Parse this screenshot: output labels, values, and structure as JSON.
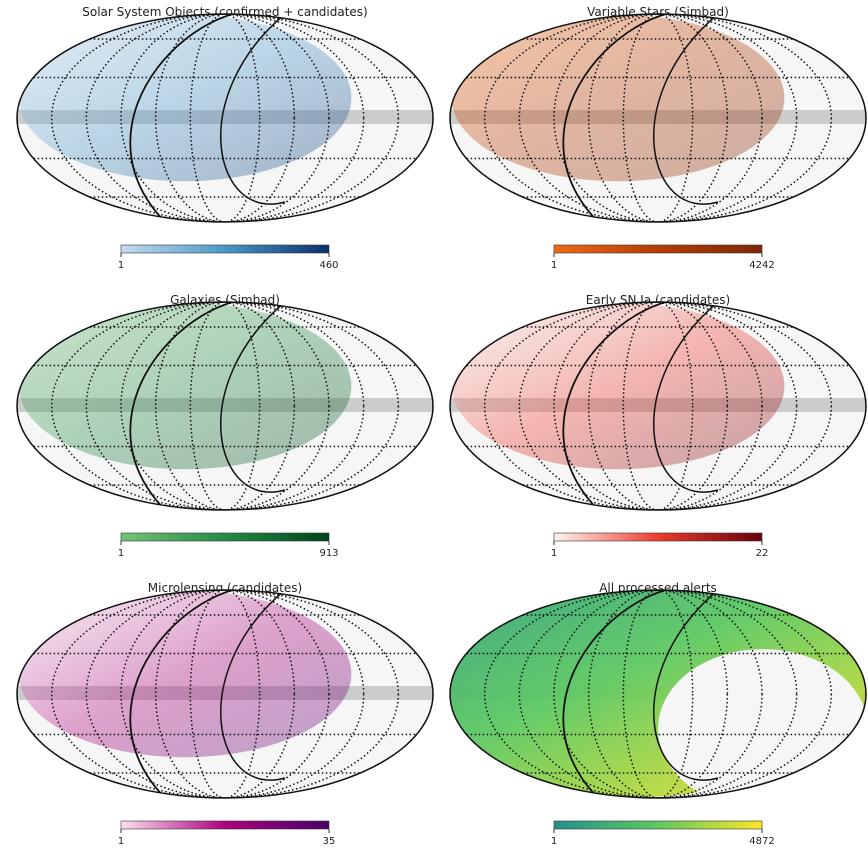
{
  "chart_data": [
    {
      "type": "skymap",
      "title": "Solar System Objects (confirmed + candidates)",
      "cmap": [
        "#c6dbef",
        "#4a98c9",
        "#08306b"
      ],
      "clim": [
        1,
        460
      ],
      "cticks": [
        1,
        460
      ]
    },
    {
      "type": "skymap",
      "title": "Variable Stars (Simbad)",
      "cmap": [
        "#f16913",
        "#b63c02",
        "#7f2704"
      ],
      "clim": [
        1,
        4242
      ],
      "cticks": [
        1,
        4242
      ]
    },
    {
      "type": "skymap",
      "title": "Galaxies (Simbad)",
      "cmap": [
        "#74c476",
        "#238b45",
        "#00441b"
      ],
      "clim": [
        1,
        913
      ],
      "cticks": [
        1,
        913
      ]
    },
    {
      "type": "skymap",
      "title": "Early SN Ia (candidates)",
      "cmap": [
        "#fff5f0",
        "#ef3b2c",
        "#67000d"
      ],
      "clim": [
        1,
        22
      ],
      "cticks": [
        1,
        22
      ]
    },
    {
      "type": "skymap",
      "title": "Microlensing (candidates)",
      "cmap": [
        "#fde0ef",
        "#ae017e",
        "#49006a"
      ],
      "clim": [
        1,
        35
      ],
      "cticks": [
        1,
        35
      ]
    },
    {
      "type": "skymap",
      "title": "All processed alerts",
      "cmap": [
        "#21918c",
        "#5ec962",
        "#fde725"
      ],
      "clim": [
        1,
        4872
      ],
      "cticks": [
        1,
        4872
      ]
    }
  ]
}
